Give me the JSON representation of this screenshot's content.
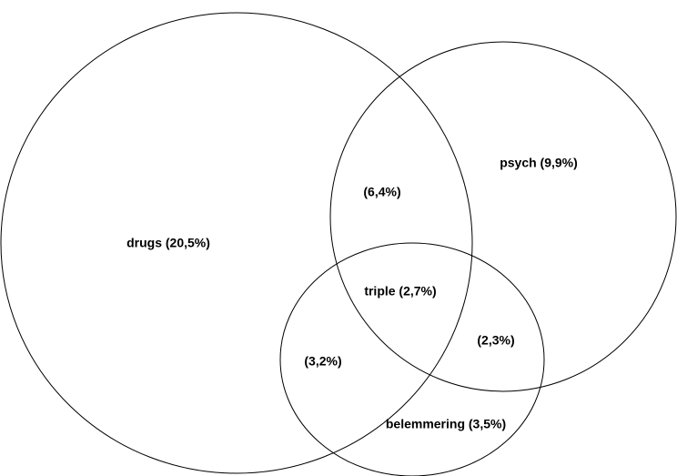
{
  "regions": [
    {
      "label": "drugs (20,5%)"
    },
    {
      "label": "(6,4%)"
    },
    {
      "label": "psych (9,9%)"
    },
    {
      "label": "triple (2,7%)"
    },
    {
      "label": "(2,3%)"
    },
    {
      "label": "(3,2%)"
    },
    {
      "label": "belemmering (3,5%)"
    }
  ]
}
